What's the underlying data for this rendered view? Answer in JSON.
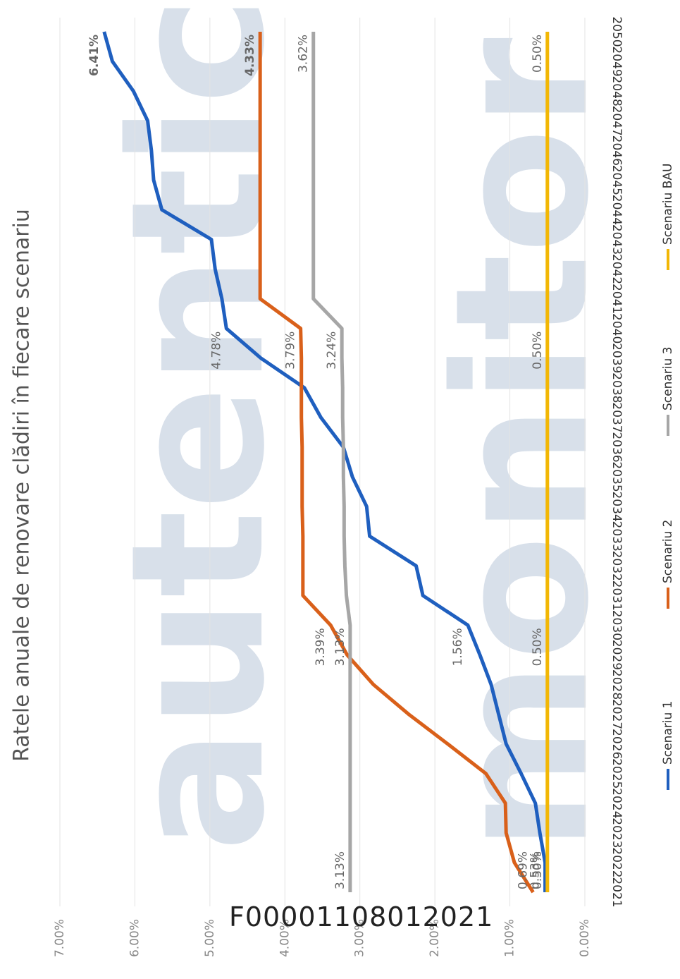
{
  "watermark": [
    "autentic",
    "monitor"
  ],
  "stamp": "F00001108012021",
  "chart_data": {
    "type": "line",
    "title": "Ratele anuale de renovare clădiri în fiecare scenariu",
    "x": [
      2021,
      2022,
      2023,
      2024,
      2025,
      2026,
      2027,
      2028,
      2029,
      2030,
      2031,
      2032,
      2033,
      2034,
      2035,
      2036,
      2037,
      2038,
      2039,
      2040,
      2041,
      2042,
      2043,
      2044,
      2045,
      2046,
      2047,
      2048,
      2049,
      2050
    ],
    "ylim": [
      0,
      7
    ],
    "yticks": [
      {
        "value": 0,
        "label": "0.00%"
      },
      {
        "value": 1,
        "label": "1.00%"
      },
      {
        "value": 2,
        "label": "2.00%"
      },
      {
        "value": 3,
        "label": "3.00%"
      },
      {
        "value": 4,
        "label": "4.00%"
      },
      {
        "value": 5,
        "label": "5.00%"
      },
      {
        "value": 6,
        "label": "6.00%"
      },
      {
        "value": 7,
        "label": "7.00%"
      }
    ],
    "grid": true,
    "legend": "bottom",
    "series": [
      {
        "name": "Scenariu 1",
        "color": "#1f5fbf",
        "values": [
          0.53,
          0.53,
          0.6,
          0.66,
          0.85,
          1.05,
          1.15,
          1.25,
          1.4,
          1.56,
          2.16,
          2.25,
          2.87,
          2.91,
          3.1,
          3.22,
          3.52,
          3.74,
          4.32,
          4.78,
          4.84,
          4.93,
          4.98,
          5.64,
          5.75,
          5.78,
          5.83,
          6.02,
          6.3,
          6.41
        ],
        "value_labels": [
          "0.53%",
          null,
          null,
          null,
          null,
          null,
          null,
          null,
          null,
          "1.56%",
          null,
          null,
          null,
          null,
          null,
          null,
          null,
          null,
          null,
          "4.78%",
          null,
          null,
          null,
          null,
          null,
          null,
          null,
          null,
          null,
          "6.41%"
        ]
      },
      {
        "name": "Scenariu 2",
        "color": "#d9601a",
        "values": [
          0.69,
          0.94,
          1.05,
          1.06,
          1.32,
          1.83,
          2.35,
          2.82,
          3.17,
          3.39,
          3.76,
          3.76,
          3.76,
          3.77,
          3.77,
          3.77,
          3.78,
          3.78,
          3.78,
          3.79,
          4.33,
          4.33,
          4.33,
          4.33,
          4.33,
          4.33,
          4.33,
          4.33,
          4.33,
          4.33
        ],
        "value_labels": [
          "0.69%",
          null,
          null,
          null,
          null,
          null,
          null,
          null,
          null,
          "3.39%",
          null,
          null,
          null,
          null,
          null,
          null,
          null,
          null,
          null,
          "3.79%",
          null,
          null,
          null,
          null,
          null,
          null,
          null,
          null,
          null,
          "4.33%"
        ]
      },
      {
        "name": "Scenariu 3",
        "color": "#a6a6a6",
        "values": [
          3.13,
          3.13,
          3.13,
          3.13,
          3.13,
          3.13,
          3.13,
          3.13,
          3.13,
          3.13,
          3.18,
          3.2,
          3.21,
          3.21,
          3.22,
          3.22,
          3.23,
          3.23,
          3.24,
          3.24,
          3.62,
          3.62,
          3.62,
          3.62,
          3.62,
          3.62,
          3.62,
          3.62,
          3.62,
          3.62
        ],
        "value_labels": [
          "3.13%",
          null,
          null,
          null,
          null,
          null,
          null,
          null,
          null,
          "3.13%",
          null,
          null,
          null,
          null,
          null,
          null,
          null,
          null,
          null,
          "3.24%",
          null,
          null,
          null,
          null,
          null,
          null,
          null,
          null,
          null,
          "3.62%"
        ]
      },
      {
        "name": "Scenariu BAU",
        "color": "#f2b705",
        "values": [
          0.5,
          0.5,
          0.5,
          0.5,
          0.5,
          0.5,
          0.5,
          0.5,
          0.5,
          0.5,
          0.5,
          0.5,
          0.5,
          0.5,
          0.5,
          0.5,
          0.5,
          0.5,
          0.5,
          0.5,
          0.5,
          0.5,
          0.5,
          0.5,
          0.5,
          0.5,
          0.5,
          0.5,
          0.5,
          0.5
        ],
        "value_labels": [
          "0.50%",
          null,
          null,
          null,
          null,
          null,
          null,
          null,
          null,
          "0.50%",
          null,
          null,
          null,
          null,
          null,
          null,
          null,
          null,
          null,
          "0.50%",
          null,
          null,
          null,
          null,
          null,
          null,
          null,
          null,
          null,
          "0.50%"
        ]
      }
    ]
  }
}
